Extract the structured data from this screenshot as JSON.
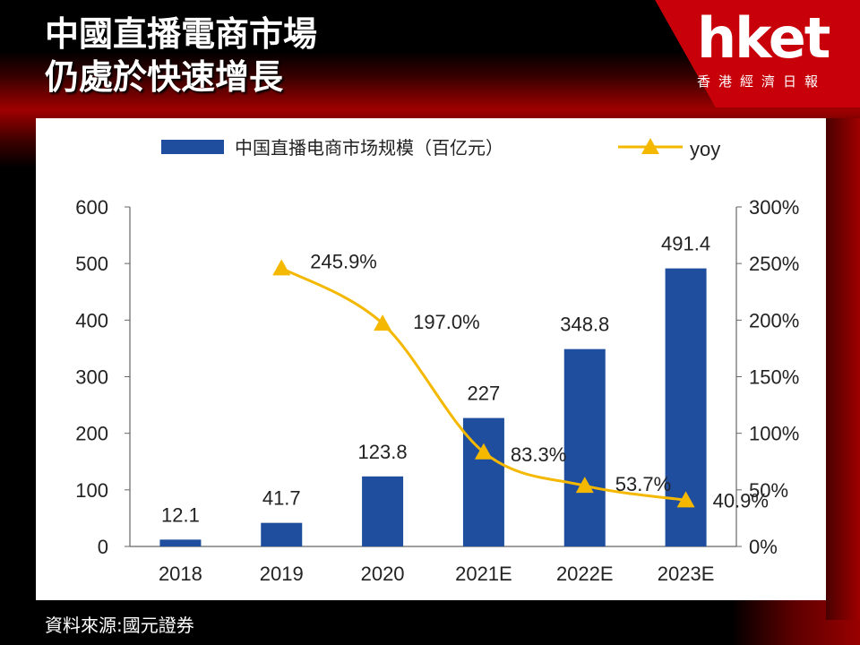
{
  "title_line1": "中國直播電商市場",
  "title_line2": "仍處於快速增長",
  "logo": {
    "name": "hket",
    "sub": "香港經濟日報"
  },
  "source": "資料來源:國元證券",
  "colors": {
    "bar": "#1f4e9e",
    "line": "#f5b800",
    "accent": "#c8000a"
  },
  "chart_data": {
    "type": "bar",
    "categories": [
      "2018",
      "2019",
      "2020",
      "2021E",
      "2022E",
      "2023E"
    ],
    "series": [
      {
        "name": "中国直播电商市场规模（百亿元）",
        "type": "bar",
        "axis": "left",
        "values": [
          12.1,
          41.7,
          123.8,
          227,
          348.8,
          491.4
        ],
        "labels": [
          "12.1",
          "41.7",
          "123.8",
          "227",
          "348.8",
          "491.4"
        ]
      },
      {
        "name": "yoy",
        "type": "line",
        "axis": "right",
        "values": [
          null,
          245.9,
          197.0,
          83.3,
          53.7,
          40.9
        ],
        "labels": [
          "",
          "245.9%",
          "197.0%",
          "83.3%",
          "53.7%",
          "40.9%"
        ]
      }
    ],
    "y_left": {
      "range": [
        0,
        600
      ],
      "ticks": [
        "0",
        "100",
        "200",
        "300",
        "400",
        "500",
        "600"
      ]
    },
    "y_right": {
      "range": [
        0,
        300
      ],
      "ticks": [
        "0%",
        "50%",
        "100%",
        "150%",
        "200%",
        "250%",
        "300%"
      ]
    },
    "legend_position": "top",
    "grid": false
  }
}
